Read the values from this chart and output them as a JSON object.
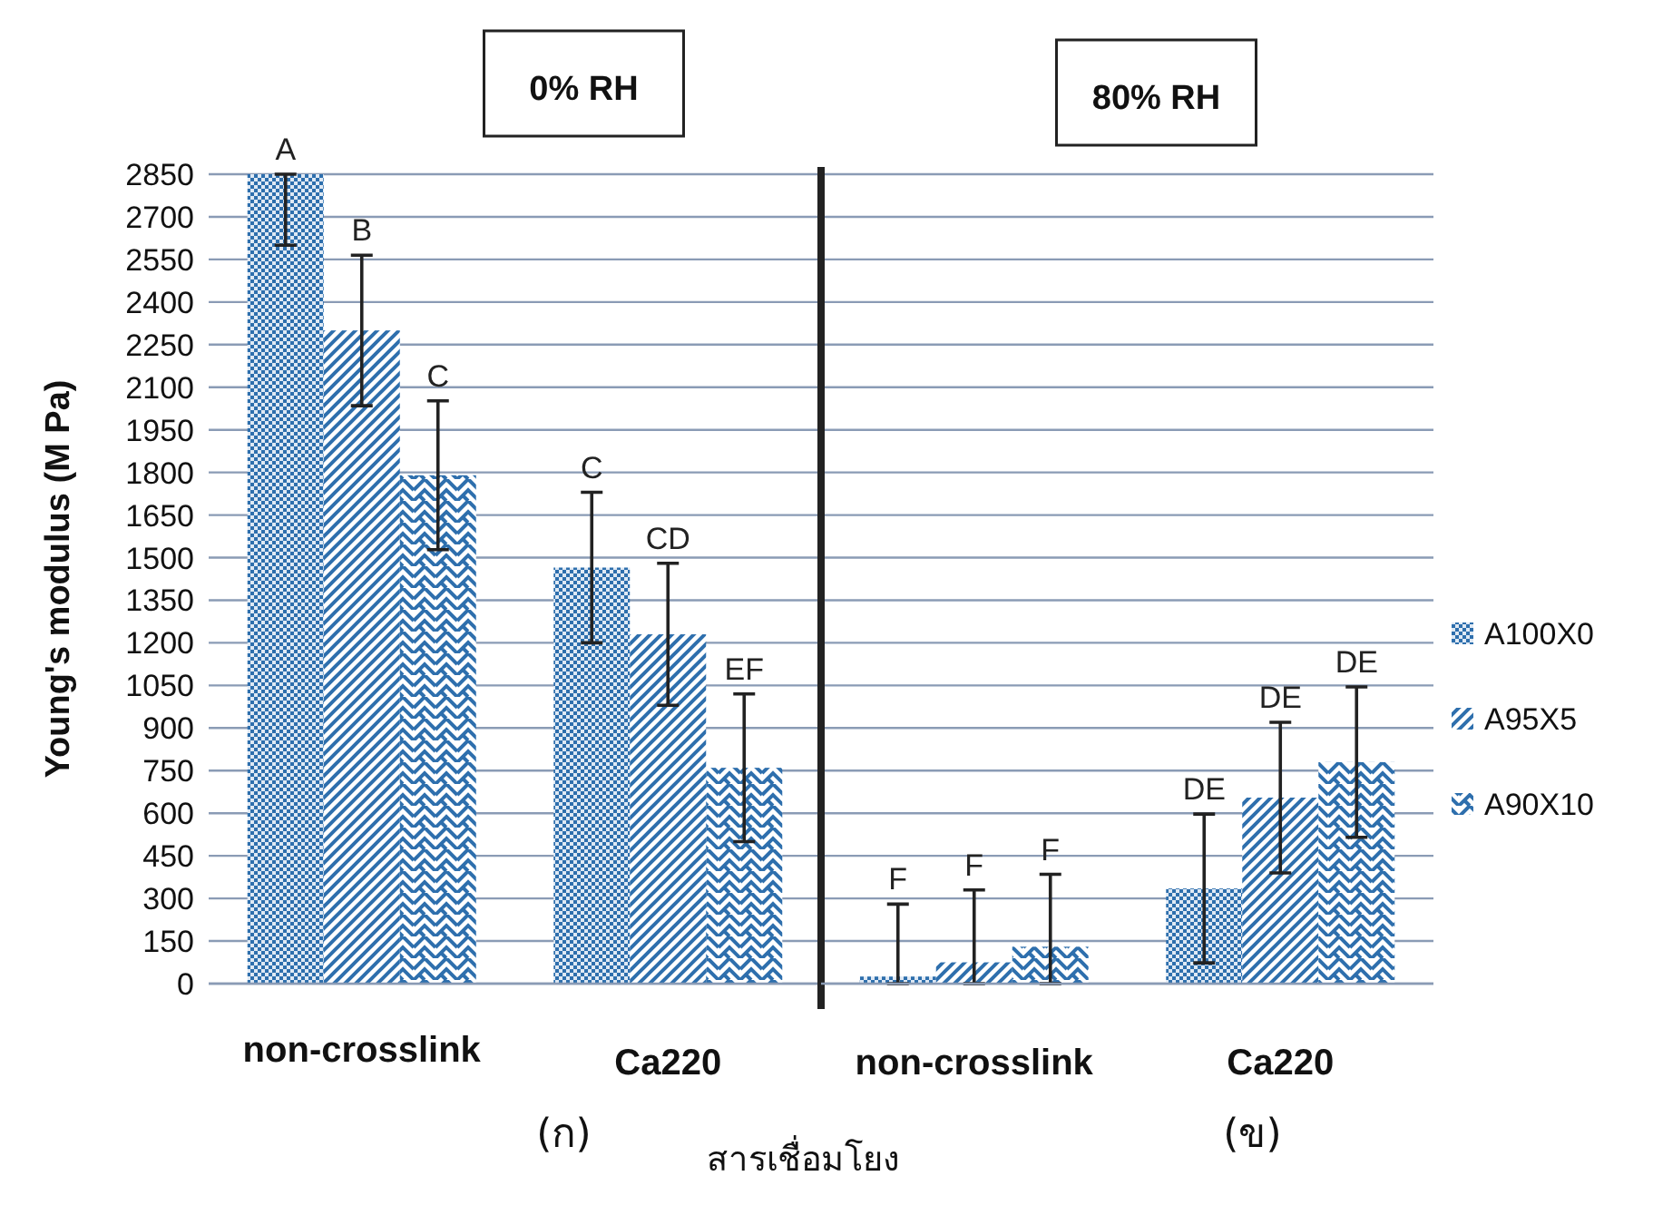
{
  "chart_data": [
    {
      "type": "bar",
      "title": "0% RH",
      "ylabel": "Young's modulus (M Pa)",
      "xlabel": "สารเชื่อมโยง",
      "categories": [
        "non-crosslink",
        "Ca220"
      ],
      "series": [
        {
          "color": "#2e6fad",
          "values": [
            2850,
            1465
          ],
          "errors": [
            [
              2600,
              2850
            ],
            265
          ],
          "value_labels": [
            "A",
            "C"
          ]
        },
        {
          "color": "#2e6fad",
          "values": [
            2300,
            1230
          ],
          "errors": [
            265,
            250
          ],
          "value_labels": [
            "B",
            "CD"
          ]
        },
        {
          "color": "#2e6fad",
          "values": [
            1790,
            760
          ],
          "errors": [
            262,
            260
          ],
          "value_labels": [
            "C",
            "EF"
          ]
        }
      ],
      "ylim": [
        0,
        2850
      ],
      "yticks": [
        0,
        150,
        300,
        450,
        600,
        750,
        900,
        1050,
        1200,
        1350,
        1500,
        1650,
        1800,
        1950,
        2100,
        2250,
        2400,
        2550,
        2700,
        2850
      ],
      "grid": "y",
      "annotations": [
        "(ก)"
      ]
    },
    {
      "type": "bar",
      "title": "80% RH",
      "categories": [
        "non-crosslink",
        "Ca220"
      ],
      "series": [
        {
          "name": "A100X0",
          "color": "#2e6fad",
          "values": [
            25,
            335
          ],
          "errors": [
            [
              0,
              280
            ],
            262
          ],
          "value_labels": [
            "F",
            "DE"
          ]
        },
        {
          "name": "A95X5",
          "color": "#2e6fad",
          "values": [
            75,
            655
          ],
          "errors": [
            [
              0,
              330
            ],
            265
          ],
          "value_labels": [
            "F",
            "DE"
          ]
        },
        {
          "name": "A90X10",
          "color": "#2e6fad",
          "values": [
            130,
            780
          ],
          "errors": [
            [
              0,
              385
            ],
            265
          ],
          "value_labels": [
            "F",
            "DE"
          ]
        }
      ],
      "ylim": [
        0,
        2850
      ],
      "yticks": [
        0,
        150,
        300,
        450,
        600,
        750,
        900,
        1050,
        1200,
        1350,
        1500,
        1650,
        1800,
        1950,
        2100,
        2250,
        2400,
        2550,
        2700,
        2850
      ],
      "tick_labels": "x",
      "grid": "y",
      "legend": "right",
      "annotations": [
        "(ข)"
      ]
    }
  ]
}
